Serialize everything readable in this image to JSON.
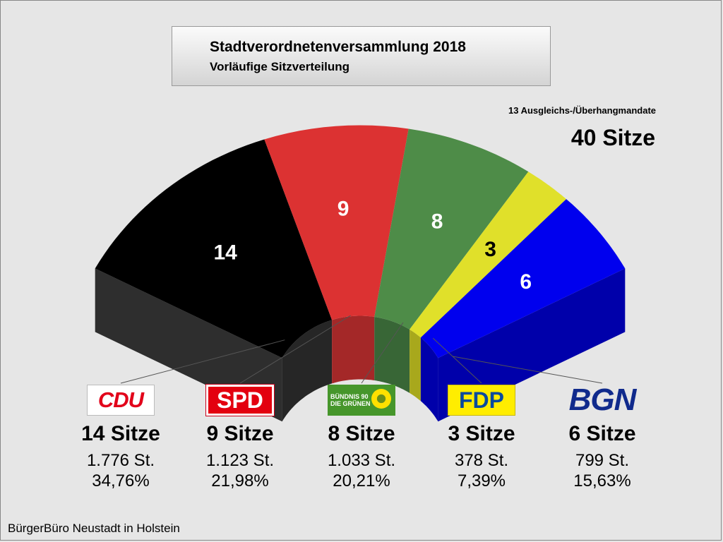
{
  "chart_data": {
    "type": "parliament-arc",
    "title": "Stadtverordnetenversammlung 2018",
    "subtitle": "Vorläufige Sitzverteilung",
    "extra_note": "13 Ausgleichs-/Überhangmandate",
    "total_label": "40 Sitze",
    "total_seats": 40,
    "parties": [
      {
        "name": "CDU",
        "seats": 14,
        "seats_label": "14 Sitze",
        "votes": "1.776 St.",
        "percent": "34,76%",
        "color": "#000000",
        "side": "#262626",
        "label_color": "#ffffff"
      },
      {
        "name": "SPD",
        "seats": 9,
        "seats_label": "9 Sitze",
        "votes": "1.123 St.",
        "percent": "21,98%",
        "color": "#dc3232",
        "side": "#a42828",
        "label_color": "#ffffff"
      },
      {
        "name": "BÜNDNIS 90 DIE GRÜNEN",
        "seats": 8,
        "seats_label": "8 Sitze",
        "votes": "1.033 St.",
        "percent": "20,21%",
        "color": "#4e8c48",
        "side": "#386636",
        "label_color": "#ffffff"
      },
      {
        "name": "FDP",
        "seats": 3,
        "seats_label": "3 Sitze",
        "votes": "378 St.",
        "percent": "7,39%",
        "color": "#e0e02a",
        "side": "#a8a81c",
        "label_color": "#000000"
      },
      {
        "name": "BGN",
        "seats": 6,
        "seats_label": "6 Sitze",
        "votes": "799 St.",
        "percent": "15,63%",
        "color": "#0000ee",
        "side": "#0000aa",
        "label_color": "#ffffff"
      }
    ]
  },
  "logos": {
    "cdu": "CDU",
    "spd": "SPD",
    "gruene_line1": "BÜNDNIS 90",
    "gruene_line2": "DIE GRÜNEN",
    "fdp": "FDP",
    "bgn": "BGN"
  },
  "footer": "BürgerBüro Neustadt in Holstein"
}
